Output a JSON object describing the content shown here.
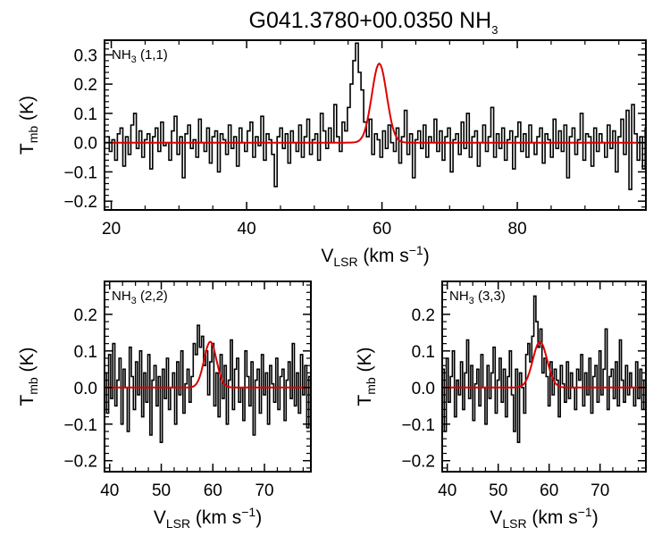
{
  "title": {
    "main": "G041.3780+00.0350 NH",
    "sub": "3"
  },
  "colors": {
    "spectrum": "#000000",
    "fit": "#e00000",
    "frame": "#000000",
    "background": "#ffffff"
  },
  "chart_data": [
    {
      "type": "line",
      "panel": "top",
      "label": {
        "main": "NH",
        "sub": "3",
        "suffix": " (1,1)"
      },
      "xlabel": {
        "main": "V",
        "sub": "LSR",
        "unit": " (km s",
        "sup": "−1",
        "close": ")"
      },
      "ylabel": {
        "main": "T",
        "sub": "mb",
        "unit": " (K)"
      },
      "xlim": [
        19,
        99
      ],
      "ylim": [
        -0.23,
        0.35
      ],
      "xticks": [
        20,
        40,
        60,
        80
      ],
      "yticks": [
        -0.2,
        -0.1,
        0.0,
        0.1,
        0.2,
        0.3
      ],
      "tick_labels": {
        "x": [
          "20",
          "40",
          "60",
          "80"
        ],
        "y": [
          "−0.2",
          "−0.1",
          "0.0",
          "0.1",
          "0.2",
          "0.3"
        ]
      },
      "spectrum": {
        "x_start": 19.5,
        "x_step": 0.4,
        "y": [
          0.02,
          -0.03,
          0.01,
          -0.06,
          0.03,
          0.05,
          -0.08,
          0.02,
          -0.04,
          0.06,
          0.1,
          -0.02,
          0.04,
          -0.05,
          0.01,
          0.03,
          -0.09,
          0.02,
          0.05,
          -0.03,
          0.07,
          -0.01,
          0.0,
          -0.06,
          0.04,
          0.09,
          -0.04,
          0.02,
          -0.12,
          0.03,
          0.06,
          -0.02,
          0.01,
          -0.05,
          0.08,
          0.0,
          -0.03,
          0.05,
          -0.07,
          0.02,
          0.04,
          -0.1,
          0.03,
          0.01,
          -0.04,
          0.06,
          -0.02,
          0.02,
          -0.08,
          0.05,
          0.0,
          -0.03,
          0.04,
          0.07,
          -0.05,
          0.02,
          -0.01,
          0.09,
          -0.06,
          0.03,
          0.01,
          -0.04,
          -0.15,
          0.02,
          0.05,
          -0.02,
          0.03,
          -0.07,
          0.04,
          0.0,
          -0.03,
          0.06,
          -0.05,
          0.02,
          0.08,
          -0.04,
          0.01,
          0.03,
          -0.06,
          0.1,
          0.04,
          -0.02,
          0.05,
          0.0,
          0.13,
          0.02,
          -0.03,
          0.07,
          0.04,
          0.12,
          0.2,
          0.28,
          0.34,
          0.24,
          0.18,
          0.07,
          0.02,
          0.08,
          -0.04,
          0.03,
          0.01,
          -0.05,
          0.04,
          -0.02,
          0.06,
          0.0,
          -0.03,
          0.05,
          -0.07,
          0.02,
          0.11,
          -0.04,
          0.03,
          -0.12,
          0.01,
          0.04,
          -0.02,
          0.06,
          -0.05,
          0.02,
          0.0,
          0.08,
          -0.03,
          0.04,
          -0.06,
          0.02,
          0.05,
          -0.1,
          0.01,
          0.03,
          -0.04,
          0.07,
          -0.02,
          0.1,
          -0.05,
          0.02,
          0.04,
          -0.08,
          0.0,
          0.06,
          -0.03,
          0.02,
          0.12,
          -0.05,
          0.03,
          -0.02,
          0.05,
          -0.06,
          0.01,
          0.04,
          -0.09,
          0.02,
          0.07,
          -0.03,
          0.03,
          -0.05,
          0.06,
          0.0,
          -0.04,
          0.02,
          0.05,
          -0.07,
          0.03,
          0.01,
          -0.05,
          0.08,
          -0.02,
          0.04,
          -0.03,
          0.06,
          -0.12,
          0.02,
          0.05,
          -0.04,
          0.01,
          0.1,
          -0.06,
          0.03,
          0.02,
          -0.08,
          0.05,
          -0.03,
          0.03,
          0.0,
          -0.05,
          0.06,
          -0.02,
          0.04,
          -0.1,
          0.02,
          0.08,
          -0.04,
          0.11,
          -0.16,
          0.13,
          0.03,
          -0.06,
          0.02,
          -0.09,
          0.05,
          0.02,
          -0.04
        ]
      },
      "fit": {
        "amplitude": 0.27,
        "center": 59.6,
        "sigma": 1.1
      }
    },
    {
      "type": "line",
      "panel": "bottom-left",
      "label": {
        "main": "NH",
        "sub": "3",
        "suffix": " (2,2)"
      },
      "xlabel": {
        "main": "V",
        "sub": "LSR",
        "unit": " (km s",
        "sup": "−1",
        "close": ")"
      },
      "ylabel": {
        "main": "T",
        "sub": "mb",
        "unit": " (K)"
      },
      "xlim": [
        39,
        79
      ],
      "ylim": [
        -0.23,
        0.29
      ],
      "xticks": [
        40,
        50,
        60,
        70
      ],
      "yticks": [
        -0.2,
        -0.1,
        0.0,
        0.1,
        0.2
      ],
      "tick_labels": {
        "x": [
          "40",
          "50",
          "60",
          "70"
        ],
        "y": [
          "−0.2",
          "−0.1",
          "0.0",
          "0.1",
          "0.2"
        ]
      },
      "spectrum": {
        "x_start": 39.2,
        "x_step": 0.4,
        "y": [
          0.04,
          -0.07,
          0.09,
          -0.03,
          0.12,
          -0.05,
          0.02,
          0.08,
          -0.1,
          0.05,
          0.0,
          -0.12,
          0.11,
          0.03,
          -0.06,
          0.07,
          -0.02,
          0.1,
          -0.08,
          0.04,
          -0.04,
          0.09,
          -0.13,
          0.02,
          0.06,
          -0.05,
          0.03,
          -0.15,
          0.05,
          -0.03,
          0.08,
          -0.06,
          0.0,
          0.04,
          -0.1,
          0.07,
          -0.02,
          0.1,
          -0.07,
          0.01,
          0.05,
          -0.04,
          0.03,
          0.12,
          0.09,
          0.17,
          0.11,
          0.14,
          0.06,
          0.1,
          -0.02,
          0.07,
          0.12,
          -0.05,
          0.04,
          -0.08,
          0.09,
          -0.03,
          0.06,
          -0.1,
          0.02,
          0.13,
          -0.06,
          0.05,
          0.08,
          -0.04,
          0.0,
          -0.09,
          0.1,
          0.03,
          -0.05,
          0.07,
          -0.13,
          0.02,
          0.05,
          -0.07,
          0.09,
          -0.02,
          0.04,
          -0.1,
          0.06,
          0.01,
          -0.04,
          0.08,
          -0.06,
          0.03,
          0.05,
          -0.09,
          0.02,
          0.07,
          -0.03,
          0.12,
          -0.05,
          0.04,
          -0.07,
          0.09,
          -0.02,
          0.06,
          -0.11,
          0.03
        ]
      },
      "fit": {
        "amplitude": 0.125,
        "center": 59.5,
        "sigma": 1.2
      }
    },
    {
      "type": "line",
      "panel": "bottom-right",
      "label": {
        "main": "NH",
        "sub": "3",
        "suffix": " (3,3)"
      },
      "xlabel": {
        "main": "V",
        "sub": "LSR",
        "unit": " (km s",
        "sup": "−1",
        "close": ")"
      },
      "ylabel": {
        "main": "T",
        "sub": "mb",
        "unit": " (K)"
      },
      "xlim": [
        39,
        79
      ],
      "ylim": [
        -0.23,
        0.29
      ],
      "xticks": [
        40,
        50,
        60,
        70
      ],
      "yticks": [
        -0.2,
        -0.1,
        0.0,
        0.1,
        0.2
      ],
      "tick_labels": {
        "x": [
          "40",
          "50",
          "60",
          "70"
        ],
        "y": [
          "−0.2",
          "−0.1",
          "0.0",
          "0.1",
          "0.2"
        ]
      },
      "spectrum": {
        "x_start": 39.2,
        "x_step": 0.4,
        "y": [
          0.05,
          -0.12,
          0.08,
          -0.04,
          0.03,
          0.1,
          -0.08,
          0.02,
          -0.02,
          0.07,
          -0.06,
          0.04,
          0.13,
          -0.03,
          0.06,
          -0.09,
          0.01,
          0.05,
          -0.05,
          0.09,
          0.0,
          -0.1,
          0.06,
          -0.03,
          0.04,
          0.11,
          -0.07,
          0.02,
          0.08,
          -0.04,
          0.05,
          -0.08,
          0.03,
          0.1,
          -0.02,
          -0.12,
          0.05,
          -0.15,
          0.04,
          0.0,
          -0.07,
          0.09,
          0.12,
          0.07,
          0.14,
          0.25,
          0.18,
          0.11,
          0.16,
          0.04,
          0.08,
          0.03,
          -0.05,
          0.07,
          -0.02,
          0.05,
          0.02,
          -0.08,
          0.06,
          0.01,
          -0.04,
          0.07,
          -0.03,
          0.04,
          0.0,
          -0.06,
          0.05,
          0.02,
          0.09,
          -0.05,
          0.04,
          -0.02,
          0.08,
          -0.07,
          0.03,
          0.06,
          -0.04,
          0.1,
          -0.02,
          0.05,
          0.16,
          -0.06,
          0.03,
          0.05,
          -0.03,
          0.07,
          -0.05,
          0.13,
          0.02,
          -0.04,
          0.06,
          -0.02,
          0.04,
          0.0,
          -0.05,
          0.07,
          -0.03,
          0.05,
          -0.06,
          0.02
        ]
      },
      "fit": {
        "amplitude": 0.125,
        "center": 58.2,
        "sigma": 1.4
      }
    }
  ]
}
